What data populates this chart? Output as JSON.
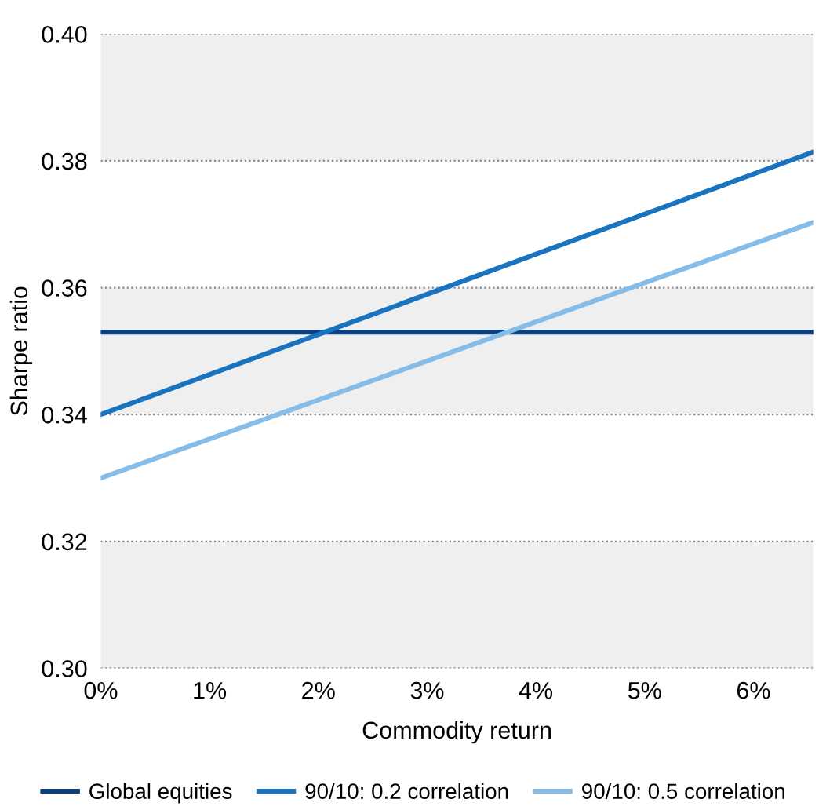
{
  "chart_data": {
    "type": "line",
    "xlabel": "Commodity return",
    "ylabel": "Sharpe ratio",
    "x": [
      0,
      6.55
    ],
    "series": [
      {
        "name": "Global equities",
        "color": "#0d3f7a",
        "values": [
          0.353,
          0.353
        ]
      },
      {
        "name": "90/10: 0.2 correlation",
        "color": "#1a73c0",
        "values": [
          0.34,
          0.3814
        ]
      },
      {
        "name": "90/10: 0.5 correlation",
        "color": "#85bde8",
        "values": [
          0.33,
          0.3703
        ]
      }
    ],
    "xlim": [
      0,
      6.55
    ],
    "ylim": [
      0.3,
      0.4
    ],
    "xticks": [
      {
        "value": 0,
        "label": "0%"
      },
      {
        "value": 1,
        "label": "1%"
      },
      {
        "value": 2,
        "label": "2%"
      },
      {
        "value": 3,
        "label": "3%"
      },
      {
        "value": 4,
        "label": "4%"
      },
      {
        "value": 5,
        "label": "5%"
      },
      {
        "value": 6,
        "label": "6%"
      }
    ],
    "yticks": [
      {
        "value": 0.3,
        "label": "0.30"
      },
      {
        "value": 0.32,
        "label": "0.32"
      },
      {
        "value": 0.34,
        "label": "0.34"
      },
      {
        "value": 0.36,
        "label": "0.36"
      },
      {
        "value": 0.38,
        "label": "0.38"
      },
      {
        "value": 0.4,
        "label": "0.40"
      }
    ],
    "bands": [
      {
        "axis": "y",
        "from": 0.3,
        "to": 0.32,
        "color": "#efefef"
      },
      {
        "axis": "y",
        "from": 0.34,
        "to": 0.36,
        "color": "#efefef"
      },
      {
        "axis": "y",
        "from": 0.38,
        "to": 0.4,
        "color": "#efefef"
      }
    ],
    "grid": "y",
    "legend": "bottom",
    "marker": "none",
    "line_style": "solid"
  }
}
